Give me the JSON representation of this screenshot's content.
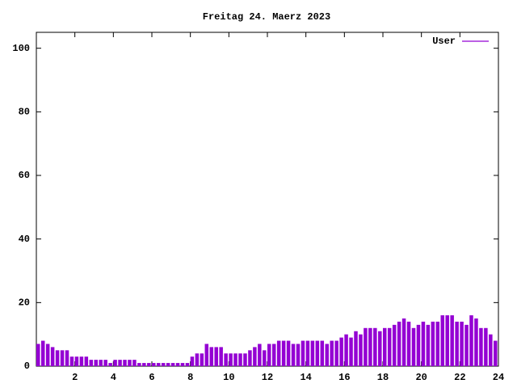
{
  "chart_data": {
    "type": "impulse",
    "title": "Freitag 24. Maerz 2023",
    "x": [
      0,
      0.25,
      0.5,
      0.75,
      1,
      1.25,
      1.5,
      1.75,
      2,
      2.25,
      2.5,
      2.75,
      3,
      3.25,
      3.5,
      3.75,
      4,
      4.25,
      4.5,
      4.75,
      5,
      5.25,
      5.5,
      5.75,
      6,
      6.25,
      6.5,
      6.75,
      7,
      7.25,
      7.5,
      7.75,
      8,
      8.25,
      8.5,
      8.75,
      9,
      9.25,
      9.5,
      9.75,
      10,
      10.25,
      10.5,
      10.75,
      11,
      11.25,
      11.5,
      11.75,
      12,
      12.25,
      12.5,
      12.75,
      13,
      13.25,
      13.5,
      13.75,
      14,
      14.25,
      14.5,
      14.75,
      15,
      15.25,
      15.5,
      15.75,
      16,
      16.25,
      16.5,
      16.75,
      17,
      17.25,
      17.5,
      17.75,
      18,
      18.25,
      18.5,
      18.75,
      19,
      19.25,
      19.5,
      19.75,
      20,
      20.25,
      20.5,
      20.75,
      21,
      21.25,
      21.5,
      21.75,
      22,
      22.25,
      22.5,
      22.75,
      23,
      23.25,
      23.5,
      23.75
    ],
    "series": [
      {
        "name": "User",
        "color": "#9400d3",
        "values": [
          7,
          8,
          7,
          6,
          5,
          5,
          5,
          3,
          3,
          3,
          3,
          2,
          2,
          2,
          2,
          1,
          2,
          2,
          2,
          2,
          2,
          1,
          1,
          1,
          1,
          1,
          1,
          1,
          1,
          1,
          1,
          1,
          3,
          4,
          4,
          7,
          6,
          6,
          6,
          4,
          4,
          4,
          4,
          4,
          5,
          6,
          7,
          5,
          7,
          7,
          8,
          8,
          8,
          7,
          7,
          8,
          8,
          8,
          8,
          8,
          7,
          8,
          8,
          9,
          10,
          9,
          11,
          10,
          12,
          12,
          12,
          11,
          12,
          12,
          13,
          14,
          15,
          14,
          12,
          13,
          14,
          13,
          14,
          14,
          16,
          16,
          16,
          14,
          14,
          13,
          16,
          15,
          12,
          12,
          10,
          8
        ]
      }
    ],
    "xlim": [
      0,
      24
    ],
    "xticks": [
      2,
      4,
      6,
      8,
      10,
      12,
      14,
      16,
      18,
      20,
      22,
      24
    ],
    "ylim": [
      0,
      105
    ],
    "yticks": [
      0,
      20,
      40,
      60,
      80,
      100
    ],
    "legend": "top-right"
  }
}
